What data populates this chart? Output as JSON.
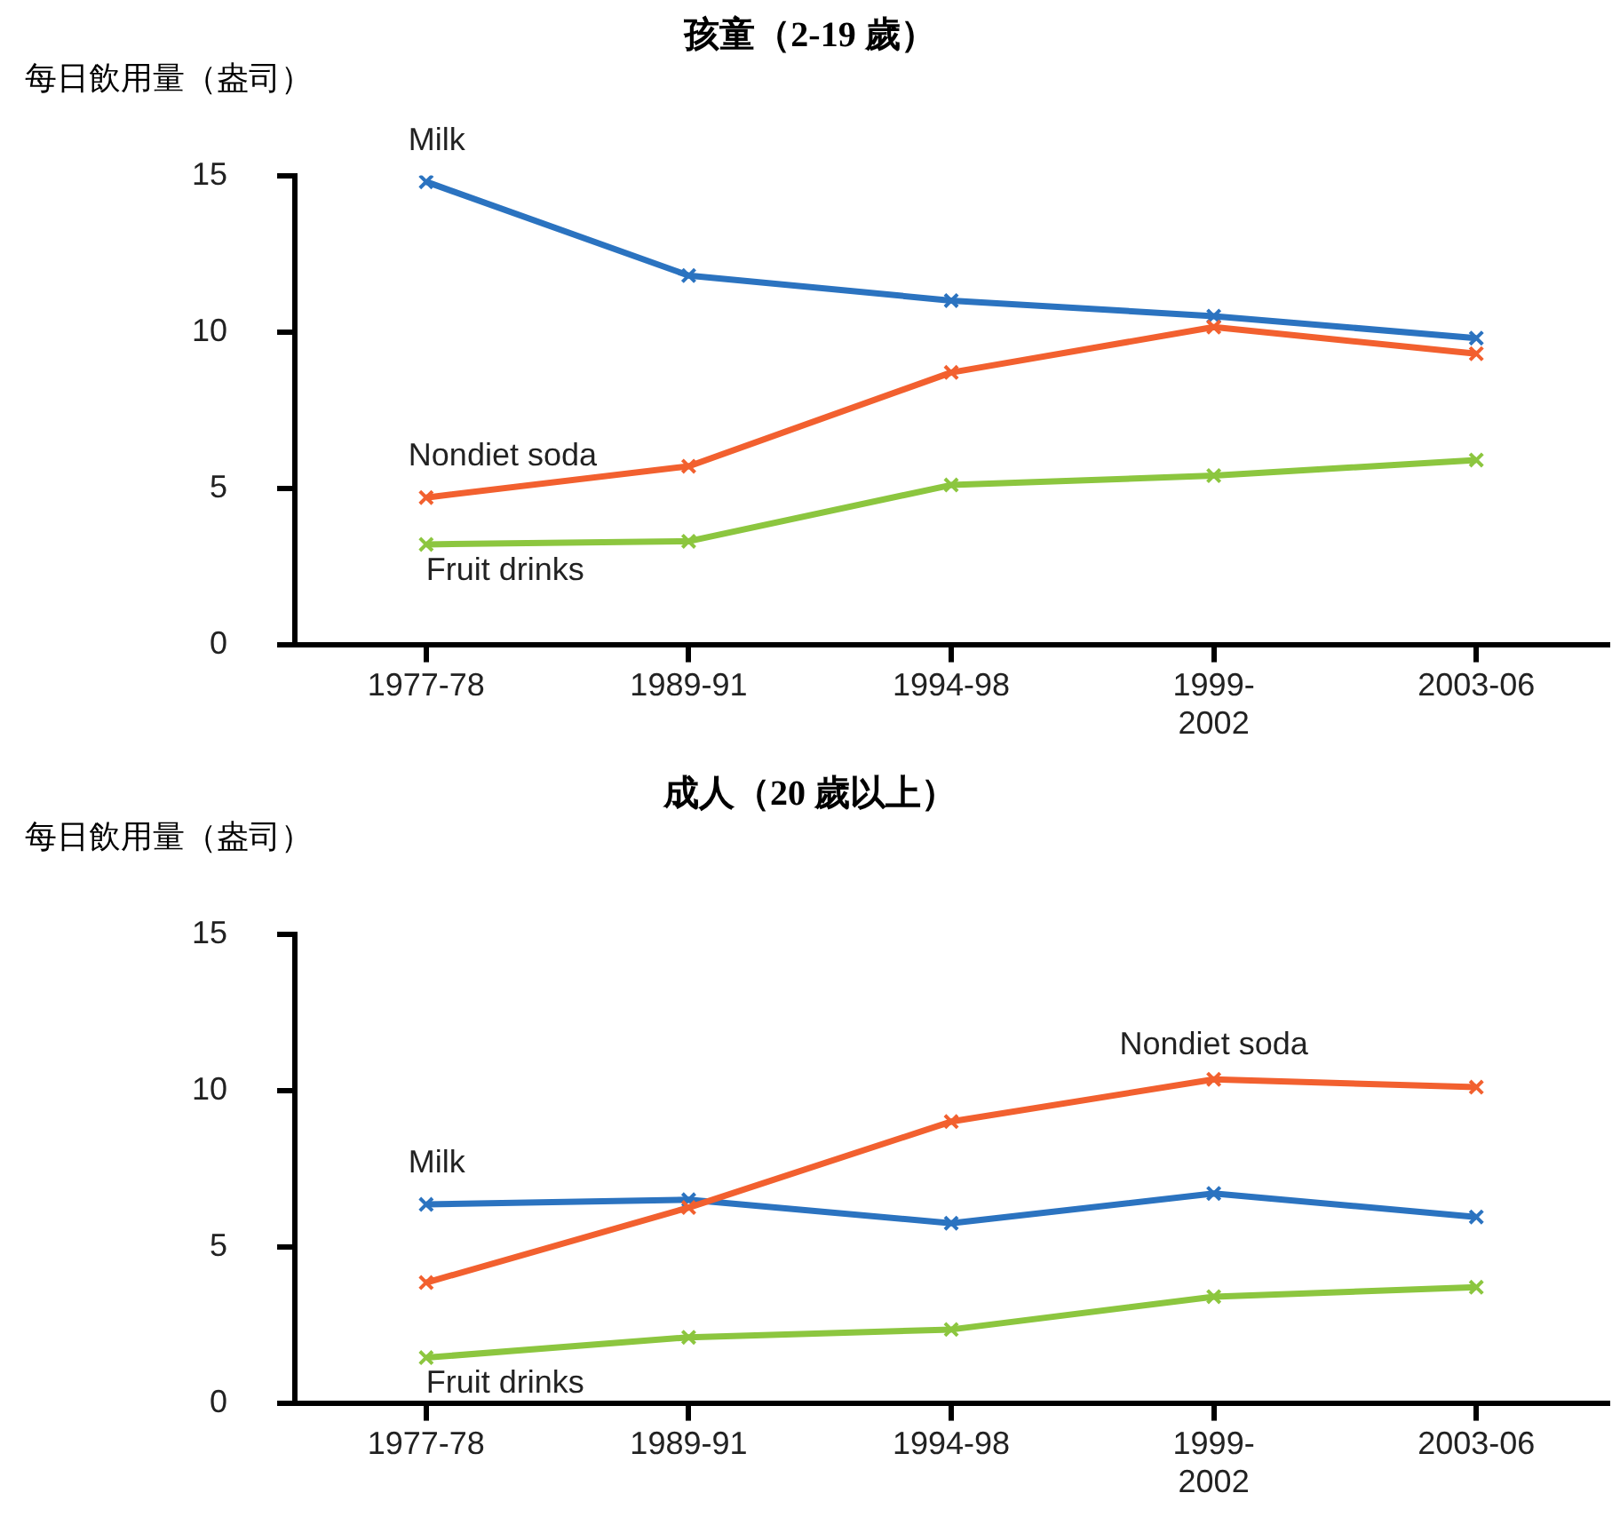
{
  "chart_data": [
    {
      "type": "line",
      "title": "孩童（2-19 歲）",
      "ylabel": "每日飲用量（盎司）",
      "categories": [
        "1977-78",
        "1989-91",
        "1994-98",
        "1999-\n2002",
        "2003-06"
      ],
      "ylim": [
        0,
        15
      ],
      "yticks": [
        0,
        5,
        10,
        15
      ],
      "grid": false,
      "legend": false,
      "marker": "cross",
      "line_style": "solid",
      "series": [
        {
          "name": "Milk",
          "color": "#2b73c0",
          "values": [
            14.8,
            11.8,
            11.0,
            10.5,
            9.8
          ]
        },
        {
          "name": "Nondiet soda",
          "color": "#f2602f",
          "values": [
            4.7,
            5.7,
            8.7,
            10.15,
            9.3
          ]
        },
        {
          "name": "Fruit drinks",
          "color": "#8cc63f",
          "values": [
            3.2,
            3.3,
            5.1,
            5.4,
            5.9
          ]
        }
      ]
    },
    {
      "type": "line",
      "title": "成人（20 歲以上）",
      "ylabel": "每日飲用量（盎司）",
      "categories": [
        "1977-78",
        "1989-91",
        "1994-98",
        "1999-\n2002",
        "2003-06"
      ],
      "ylim": [
        0,
        15
      ],
      "yticks": [
        0,
        5,
        10,
        15
      ],
      "grid": false,
      "legend": false,
      "marker": "cross",
      "line_style": "solid",
      "series": [
        {
          "name": "Milk",
          "color": "#2b73c0",
          "values": [
            6.35,
            6.5,
            5.75,
            6.7,
            5.95
          ]
        },
        {
          "name": "Nondiet soda",
          "color": "#f2602f",
          "values": [
            3.85,
            6.25,
            9.0,
            10.35,
            10.1
          ]
        },
        {
          "name": "Fruit drinks",
          "color": "#8cc63f",
          "values": [
            1.45,
            2.1,
            2.35,
            3.4,
            3.7
          ]
        }
      ]
    }
  ]
}
